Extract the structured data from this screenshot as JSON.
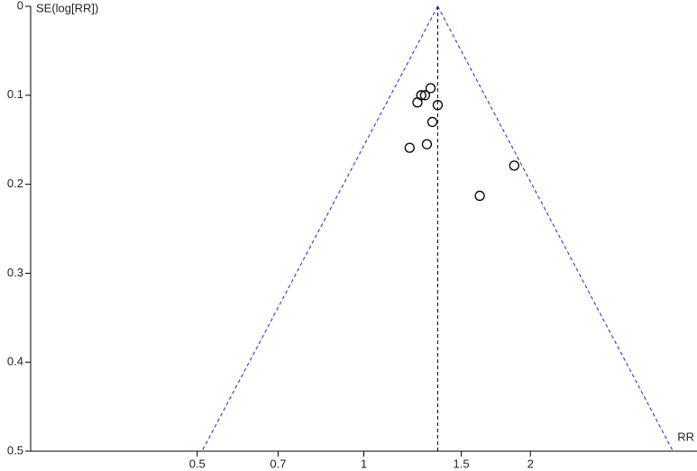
{
  "chart_data": {
    "type": "scatter",
    "y_label": "SE(log[RR])",
    "x_label": "RR",
    "x": [
      1.32,
      1.27,
      1.29,
      1.25,
      1.36,
      1.33,
      1.3,
      1.21,
      1.87,
      1.62
    ],
    "y": [
      0.092,
      0.1,
      0.1,
      0.108,
      0.111,
      0.13,
      0.155,
      0.159,
      0.179,
      0.213
    ],
    "xlim": [
      0.25,
      4
    ],
    "xscale": "log",
    "xticks": [
      0.5,
      0.7,
      1,
      1.5,
      2
    ],
    "ylim": [
      0,
      0.5
    ],
    "y_inverted": true,
    "yticks": [
      0,
      0.1,
      0.2,
      0.3,
      0.4,
      0.5
    ],
    "pooled_estimate": 1.36,
    "funnel_base": [
      0.51,
      3.62
    ],
    "marker_color": "#000000",
    "funnel_color": "#2222dd",
    "reference_color": "#000000"
  }
}
